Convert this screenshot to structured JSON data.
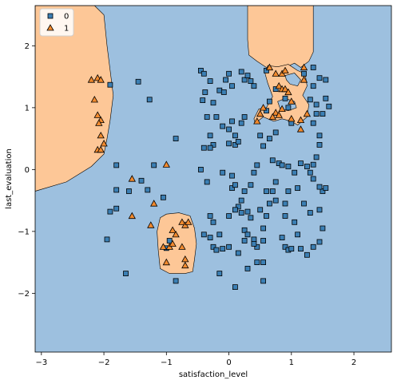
{
  "chart_data": {
    "type": "scatter",
    "title": "",
    "xlabel": "satisfaction_level",
    "ylabel": "last_evaluation",
    "xlim": [
      -3.1,
      2.6
    ],
    "ylim": [
      -2.95,
      2.65
    ],
    "xticks": [
      -3,
      -2,
      -1,
      0,
      1,
      2
    ],
    "yticks": [
      -2,
      -1,
      0,
      1,
      2
    ],
    "grid": false,
    "legend_position": "top-left",
    "background_class": "0",
    "colors": {
      "class_0_region": "#9dc0df",
      "class_1_region": "#fdc797",
      "class_0_marker": "#3b7fb4",
      "class_1_marker": "#f28a2e",
      "marker_edge": "#000000"
    },
    "series": [
      {
        "name": "0",
        "marker": "square",
        "points": [
          [
            -1.9,
            1.37
          ],
          [
            -1.45,
            1.42
          ],
          [
            -1.27,
            1.13
          ],
          [
            -1.8,
            0.07
          ],
          [
            -1.8,
            -0.33
          ],
          [
            -1.2,
            0.07
          ],
          [
            -1.3,
            -0.33
          ],
          [
            -1.05,
            -0.45
          ],
          [
            -1.9,
            -0.68
          ],
          [
            -1.8,
            -0.63
          ],
          [
            -1.6,
            -0.35
          ],
          [
            -1.4,
            -0.18
          ],
          [
            -1.95,
            -1.13
          ],
          [
            -1.65,
            -1.68
          ],
          [
            -0.85,
            0.5
          ],
          [
            -0.85,
            -1.8
          ],
          [
            -1.0,
            -1.27
          ],
          [
            -0.95,
            -1.15
          ],
          [
            -0.45,
            1.6
          ],
          [
            -0.4,
            1.55
          ],
          [
            -0.3,
            1.43
          ],
          [
            -0.38,
            1.25
          ],
          [
            -0.42,
            1.12
          ],
          [
            -0.25,
            1.08
          ],
          [
            -0.15,
            1.28
          ],
          [
            -0.08,
            1.25
          ],
          [
            -0.05,
            1.45
          ],
          [
            0.0,
            1.55
          ],
          [
            0.05,
            1.35
          ],
          [
            0.2,
            1.58
          ],
          [
            0.25,
            1.45
          ],
          [
            0.3,
            1.52
          ],
          [
            0.35,
            1.43
          ],
          [
            0.4,
            1.35
          ],
          [
            -0.35,
            0.85
          ],
          [
            -0.3,
            0.55
          ],
          [
            -0.25,
            0.4
          ],
          [
            -0.2,
            0.85
          ],
          [
            -0.1,
            0.7
          ],
          [
            0.0,
            0.65
          ],
          [
            0.1,
            0.55
          ],
          [
            0.2,
            0.75
          ],
          [
            0.25,
            0.85
          ],
          [
            0.05,
            0.78
          ],
          [
            -0.4,
            0.35
          ],
          [
            -0.45,
            0.0
          ],
          [
            -0.35,
            -0.2
          ],
          [
            -0.3,
            0.35
          ],
          [
            -0.1,
            -0.05
          ],
          [
            0.0,
            0.42
          ],
          [
            0.1,
            0.4
          ],
          [
            0.15,
            0.45
          ],
          [
            0.05,
            -0.3
          ],
          [
            0.1,
            -0.25
          ],
          [
            0.05,
            -0.1
          ],
          [
            0.15,
            -0.6
          ],
          [
            0.2,
            -0.5
          ],
          [
            0.25,
            -0.35
          ],
          [
            0.35,
            -0.25
          ],
          [
            0.4,
            -0.05
          ],
          [
            0.45,
            0.07
          ],
          [
            -0.3,
            -0.75
          ],
          [
            -0.25,
            -0.85
          ],
          [
            -0.4,
            -1.05
          ],
          [
            -0.3,
            -1.1
          ],
          [
            -0.15,
            -1.05
          ],
          [
            0.0,
            -0.75
          ],
          [
            0.1,
            -0.65
          ],
          [
            0.2,
            -0.7
          ],
          [
            0.3,
            -0.68
          ],
          [
            0.35,
            -0.78
          ],
          [
            0.25,
            -0.98
          ],
          [
            0.4,
            -1.13
          ],
          [
            0.3,
            -1.05
          ],
          [
            0.45,
            -1.25
          ],
          [
            0.45,
            -1.5
          ],
          [
            0.55,
            -1.15
          ],
          [
            0.55,
            -0.95
          ],
          [
            0.5,
            -0.65
          ],
          [
            0.6,
            -0.75
          ],
          [
            0.65,
            -0.55
          ],
          [
            0.7,
            -0.35
          ],
          [
            0.75,
            -0.2
          ],
          [
            0.8,
            0.1
          ],
          [
            0.85,
            0.07
          ],
          [
            0.95,
            0.05
          ],
          [
            0.95,
            -0.35
          ],
          [
            0.9,
            -0.55
          ],
          [
            0.9,
            -0.75
          ],
          [
            0.85,
            -1.1
          ],
          [
            0.9,
            -1.25
          ],
          [
            0.95,
            -1.3
          ],
          [
            1.0,
            -1.28
          ],
          [
            1.05,
            -0.85
          ],
          [
            1.1,
            -1.05
          ],
          [
            1.15,
            -1.28
          ],
          [
            1.25,
            -1.38
          ],
          [
            1.35,
            -1.25
          ],
          [
            1.45,
            -1.17
          ],
          [
            1.5,
            -0.95
          ],
          [
            1.45,
            -0.65
          ],
          [
            1.5,
            -0.35
          ],
          [
            1.55,
            -0.3
          ],
          [
            1.45,
            -0.28
          ],
          [
            1.35,
            -0.15
          ],
          [
            1.3,
            -0.05
          ],
          [
            1.25,
            0.05
          ],
          [
            1.35,
            0.08
          ],
          [
            1.4,
            0.2
          ],
          [
            1.45,
            0.4
          ],
          [
            1.45,
            0.55
          ],
          [
            1.35,
            0.75
          ],
          [
            1.4,
            0.9
          ],
          [
            1.5,
            0.9
          ],
          [
            1.3,
            1.13
          ],
          [
            1.4,
            1.05
          ],
          [
            1.55,
            1.15
          ],
          [
            1.6,
            1.02
          ],
          [
            1.35,
            1.35
          ],
          [
            1.55,
            1.45
          ],
          [
            1.45,
            1.48
          ],
          [
            1.2,
            1.55
          ],
          [
            1.35,
            1.65
          ],
          [
            -0.25,
            -1.25
          ],
          [
            -0.2,
            -1.3
          ],
          [
            -0.1,
            -1.28
          ],
          [
            0.0,
            -1.25
          ],
          [
            0.15,
            -1.35
          ],
          [
            0.25,
            -1.15
          ],
          [
            0.4,
            -1.2
          ],
          [
            0.3,
            -1.6
          ],
          [
            0.55,
            -1.5
          ],
          [
            0.55,
            -1.8
          ],
          [
            0.1,
            -1.9
          ],
          [
            -0.15,
            -1.68
          ],
          [
            0.6,
            1.6
          ],
          [
            0.75,
            1.3
          ],
          [
            0.9,
            1.15
          ],
          [
            0.95,
            1.0
          ],
          [
            1.0,
            0.75
          ],
          [
            0.5,
            0.55
          ],
          [
            0.6,
            0.95
          ],
          [
            0.65,
            1.1
          ],
          [
            0.65,
            0.5
          ],
          [
            0.75,
            0.6
          ],
          [
            0.55,
            0.38
          ],
          [
            0.7,
            0.15
          ],
          [
            0.6,
            -0.35
          ],
          [
            0.75,
            -0.5
          ],
          [
            1.1,
            -0.3
          ],
          [
            1.2,
            -0.55
          ],
          [
            1.3,
            -0.7
          ],
          [
            1.05,
            -0.05
          ],
          [
            1.15,
            0.1
          ]
        ]
      },
      {
        "name": "1",
        "marker": "triangle",
        "points": [
          [
            -2.1,
            1.48
          ],
          [
            -2.05,
            1.45
          ],
          [
            -2.2,
            1.45
          ],
          [
            -2.15,
            1.13
          ],
          [
            -2.1,
            0.88
          ],
          [
            -2.05,
            0.8
          ],
          [
            -2.08,
            0.75
          ],
          [
            -2.05,
            0.55
          ],
          [
            -2.1,
            0.32
          ],
          [
            -2.05,
            0.32
          ],
          [
            -2.0,
            0.42
          ],
          [
            -1.55,
            -0.15
          ],
          [
            -1.55,
            -0.75
          ],
          [
            -1.2,
            -0.55
          ],
          [
            -1.25,
            -0.9
          ],
          [
            -1.05,
            -1.25
          ],
          [
            -1.0,
            -1.5
          ],
          [
            -0.95,
            -1.25
          ],
          [
            -0.9,
            -1.2
          ],
          [
            -0.9,
            -0.98
          ],
          [
            -0.85,
            -1.05
          ],
          [
            -0.75,
            -0.85
          ],
          [
            -0.7,
            -0.9
          ],
          [
            -0.65,
            -0.85
          ],
          [
            -0.7,
            -1.45
          ],
          [
            -0.7,
            -1.55
          ],
          [
            -0.75,
            -1.25
          ],
          [
            -1.0,
            0.08
          ],
          [
            0.65,
            1.65
          ],
          [
            0.75,
            1.55
          ],
          [
            0.85,
            1.55
          ],
          [
            0.9,
            1.6
          ],
          [
            1.2,
            1.45
          ],
          [
            1.2,
            1.65
          ],
          [
            0.8,
            1.35
          ],
          [
            0.85,
            1.3
          ],
          [
            0.9,
            1.3
          ],
          [
            0.95,
            1.25
          ],
          [
            1.0,
            1.1
          ],
          [
            0.75,
            0.92
          ],
          [
            0.8,
            0.88
          ],
          [
            0.7,
            0.85
          ],
          [
            1.0,
            0.82
          ],
          [
            1.15,
            0.8
          ],
          [
            1.25,
            0.9
          ],
          [
            1.15,
            0.65
          ],
          [
            0.85,
            0.98
          ],
          [
            0.45,
            0.78
          ],
          [
            0.5,
            0.9
          ],
          [
            0.55,
            1.0
          ]
        ]
      }
    ],
    "regions": {
      "class_1": [
        {
          "name": "left",
          "poly": [
            [
              -3.1,
              2.65
            ],
            [
              -2.15,
              2.65
            ],
            [
              -2.0,
              2.5
            ],
            [
              -1.95,
              2.0
            ],
            [
              -1.9,
              1.6
            ],
            [
              -1.85,
              1.2
            ],
            [
              -1.9,
              0.8
            ],
            [
              -1.95,
              0.5
            ],
            [
              -2.0,
              0.25
            ],
            [
              -2.2,
              0.05
            ],
            [
              -2.6,
              -0.2
            ],
            [
              -3.1,
              -0.35
            ]
          ]
        },
        {
          "name": "bottom-island",
          "poly": [
            [
              -1.1,
              -0.78
            ],
            [
              -1.0,
              -0.72
            ],
            [
              -0.8,
              -0.7
            ],
            [
              -0.62,
              -0.75
            ],
            [
              -0.55,
              -0.95
            ],
            [
              -0.52,
              -1.2
            ],
            [
              -0.55,
              -1.45
            ],
            [
              -0.58,
              -1.65
            ],
            [
              -0.7,
              -1.68
            ],
            [
              -0.95,
              -1.68
            ],
            [
              -1.1,
              -1.6
            ],
            [
              -1.13,
              -1.3
            ],
            [
              -1.15,
              -1.0
            ]
          ]
        },
        {
          "name": "top-strip",
          "poly": [
            [
              0.3,
              2.65
            ],
            [
              1.35,
              2.65
            ],
            [
              1.35,
              1.9
            ],
            [
              1.28,
              1.75
            ],
            [
              1.15,
              1.65
            ],
            [
              1.05,
              1.72
            ],
            [
              0.9,
              1.65
            ],
            [
              0.75,
              1.6
            ],
            [
              0.6,
              1.65
            ],
            [
              0.45,
              1.75
            ],
            [
              0.32,
              1.85
            ],
            [
              0.3,
              2.1
            ]
          ]
        },
        {
          "name": "upper-right-blob",
          "poly": [
            [
              0.62,
              1.68
            ],
            [
              0.78,
              1.66
            ],
            [
              0.95,
              1.7
            ],
            [
              1.1,
              1.6
            ],
            [
              1.22,
              1.55
            ],
            [
              1.25,
              1.35
            ],
            [
              1.18,
              1.2
            ],
            [
              1.28,
              1.05
            ],
            [
              1.25,
              0.85
            ],
            [
              1.1,
              0.72
            ],
            [
              1.0,
              0.78
            ],
            [
              0.85,
              0.82
            ],
            [
              0.72,
              0.78
            ],
            [
              0.55,
              0.85
            ],
            [
              0.42,
              0.75
            ],
            [
              0.4,
              0.82
            ],
            [
              0.48,
              0.98
            ],
            [
              0.6,
              1.0
            ],
            [
              0.7,
              1.18
            ],
            [
              0.62,
              1.4
            ],
            [
              0.58,
              1.55
            ]
          ]
        }
      ],
      "class_0_holes": [
        {
          "name": "hole-1",
          "poly": [
            [
              0.9,
              1.52
            ],
            [
              1.05,
              1.56
            ],
            [
              1.15,
              1.45
            ],
            [
              1.1,
              1.35
            ],
            [
              0.98,
              1.38
            ],
            [
              0.92,
              1.45
            ]
          ]
        },
        {
          "name": "hole-2",
          "poly": [
            [
              0.78,
              1.1
            ],
            [
              0.9,
              1.15
            ],
            [
              1.05,
              1.1
            ],
            [
              1.08,
              1.0
            ],
            [
              0.95,
              0.95
            ],
            [
              0.82,
              0.98
            ]
          ]
        }
      ]
    },
    "legend": [
      {
        "label": "0",
        "marker": "square"
      },
      {
        "label": "1",
        "marker": "triangle"
      }
    ]
  }
}
